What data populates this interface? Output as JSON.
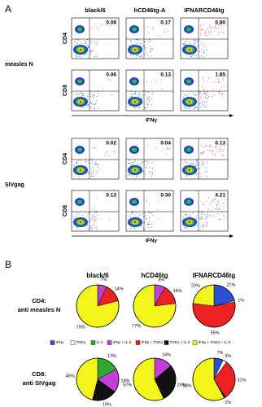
{
  "panel_a": {
    "label": "A",
    "columns": [
      "black/6",
      "hCD46tg-A",
      "IFNARCD46tg"
    ],
    "x_axis_label": "IFNγ",
    "groups": [
      {
        "name": "measles N",
        "rows": [
          {
            "marker": "CD4",
            "values": [
              "0.08",
              "0.17",
              "0.80"
            ]
          },
          {
            "marker": "CD8",
            "values": [
              "0.06",
              "0.13",
              "1.85"
            ]
          }
        ]
      },
      {
        "name": "SIVgag",
        "rows": [
          {
            "marker": "CD4",
            "values": [
              "0.02",
              "0.04",
              "0.13"
            ]
          },
          {
            "marker": "CD8",
            "values": [
              "0.13",
              "0.30",
              "4.21"
            ]
          }
        ]
      }
    ]
  },
  "panel_b": {
    "label": "B",
    "columns": [
      "black/6",
      "hCD46tg",
      "IFNARCD46tg"
    ],
    "legend": [
      {
        "label": "IFNγ",
        "color": "#2b4fd8"
      },
      {
        "label": "TNFα",
        "color": "#ffffff"
      },
      {
        "label": "IL-2",
        "color": "#2eaa2e"
      },
      {
        "label": "IFNγ + IL-2",
        "color": "#c040d8"
      },
      {
        "label": "IFNγ + TNFα",
        "color": "#ee2222"
      },
      {
        "label": "TNFα + IL-2",
        "color": "#111111"
      },
      {
        "label": "IFNγ + TNFα + IL-2",
        "color": "#f5f51e"
      }
    ],
    "rows": [
      {
        "title": "CD4:",
        "subtitle": "anti measles N",
        "pies": [
          {
            "values": [
              null,
              null,
              null,
              7,
              14,
              null,
              79
            ],
            "value_labels": [
              null,
              null,
              null,
              "7%",
              "14%",
              null,
              "79%"
            ]
          },
          {
            "values": [
              null,
              null,
              null,
              8,
              15,
              null,
              77
            ],
            "value_labels": [
              null,
              null,
              null,
              "8%",
              "15%",
              null,
              "77%"
            ]
          },
          {
            "values": [
              21,
              1,
              null,
              null,
              55,
              null,
              23
            ],
            "value_labels": [
              "21%",
              "1%",
              null,
              null,
              "55%",
              null,
              "23%"
            ]
          }
        ]
      },
      {
        "title": "CD8:",
        "subtitle": "anti SIVgag",
        "pies": [
          {
            "values": [
              null,
              null,
              17,
              18,
              null,
              19,
              46
            ],
            "value_labels": [
              null,
              null,
              "17%",
              "18%",
              null,
              "19%",
              "46%"
            ]
          },
          {
            "values": [
              null,
              null,
              null,
              14,
              null,
              29,
              57
            ],
            "value_labels": [
              null,
              null,
              null,
              "14%",
              null,
              "29%",
              "57%"
            ]
          },
          {
            "values": [
              7,
              3,
              null,
              null,
              31,
              1,
              58
            ],
            "value_labels": [
              "7%",
              "3%",
              null,
              null,
              "31%",
              "1%",
              "58%"
            ]
          }
        ]
      }
    ]
  }
}
